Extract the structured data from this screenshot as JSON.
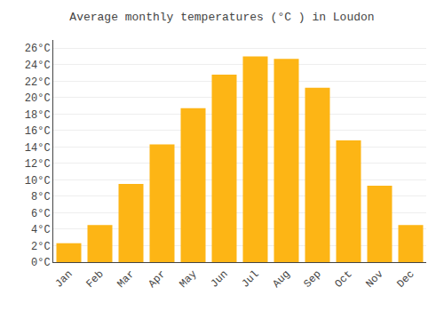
{
  "chart_data": {
    "type": "bar",
    "title": "Average monthly temperatures (°C ) in Loudon",
    "categories": [
      "Jan",
      "Feb",
      "Mar",
      "Apr",
      "May",
      "Jun",
      "Jul",
      "Aug",
      "Sep",
      "Oct",
      "Nov",
      "Dec"
    ],
    "values": [
      2.3,
      4.5,
      9.5,
      14.3,
      18.7,
      22.8,
      25.0,
      24.7,
      21.2,
      14.8,
      9.3,
      4.5
    ],
    "color": "#FDB515",
    "ylim": [
      0,
      27
    ],
    "yticks": [
      {
        "value": 0,
        "label": "0°C"
      },
      {
        "value": 2,
        "label": "2°C"
      },
      {
        "value": 4,
        "label": "4°C"
      },
      {
        "value": 6,
        "label": "6°C"
      },
      {
        "value": 8,
        "label": "8°C"
      },
      {
        "value": 10,
        "label": "10°C"
      },
      {
        "value": 12,
        "label": "12°C"
      },
      {
        "value": 14,
        "label": "14°C"
      },
      {
        "value": 16,
        "label": "16°C"
      },
      {
        "value": 18,
        "label": "18°C"
      },
      {
        "value": 20,
        "label": "20°C"
      },
      {
        "value": 22,
        "label": "22°C"
      },
      {
        "value": 24,
        "label": "24°C"
      },
      {
        "value": 26,
        "label": "26°C"
      }
    ],
    "grid": true
  }
}
